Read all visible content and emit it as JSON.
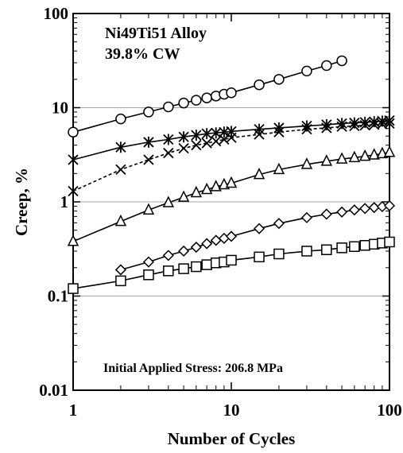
{
  "chart_data": {
    "type": "line",
    "title_lines": [
      "Ni49Ti51 Alloy",
      "39.8% CW"
    ],
    "annotation": "Initial Applied Stress: 206.8 MPa",
    "xlabel": "Number of Cycles",
    "ylabel": "Creep, %",
    "xscale": "log",
    "yscale": "log",
    "xlim": [
      1,
      100
    ],
    "ylim": [
      0.01,
      100
    ],
    "xticks": [
      "1",
      "10",
      "100"
    ],
    "yticks": [
      "0.01",
      "0.1",
      "1",
      "10",
      "100"
    ],
    "grid": "horizontal",
    "legend": "none",
    "series": [
      {
        "marker": "circle",
        "x": [
          1,
          2,
          3,
          4,
          5,
          6,
          7,
          8,
          9,
          10,
          15,
          20,
          30,
          40,
          50
        ],
        "y": [
          5.5,
          7.6,
          9.0,
          10.2,
          11.2,
          12.0,
          12.7,
          13.3,
          13.9,
          14.4,
          17.5,
          20.0,
          24.5,
          28.0,
          31.5
        ]
      },
      {
        "marker": "asterisk",
        "x": [
          1,
          2,
          3,
          4,
          5,
          6,
          7,
          8,
          9,
          10,
          15,
          20,
          30,
          40,
          50,
          60,
          70,
          80,
          90,
          100
        ],
        "y": [
          2.8,
          3.8,
          4.3,
          4.6,
          4.9,
          5.1,
          5.3,
          5.4,
          5.5,
          5.6,
          5.9,
          6.1,
          6.4,
          6.6,
          6.8,
          6.9,
          7.0,
          7.1,
          7.2,
          7.3
        ]
      },
      {
        "marker": "x",
        "dashed": true,
        "x": [
          1,
          2,
          3,
          4,
          5,
          6,
          7,
          8,
          9,
          10,
          15,
          20,
          30,
          40,
          50,
          60,
          70,
          80,
          90,
          100
        ],
        "y": [
          1.3,
          2.2,
          2.8,
          3.3,
          3.7,
          4.0,
          4.2,
          4.4,
          4.6,
          4.8,
          5.2,
          5.5,
          5.9,
          6.1,
          6.3,
          6.4,
          6.5,
          6.6,
          6.7,
          6.8
        ]
      },
      {
        "marker": "triangle",
        "x": [
          1,
          2,
          3,
          4,
          5,
          6,
          7,
          8,
          9,
          10,
          15,
          20,
          30,
          40,
          50,
          60,
          70,
          80,
          90,
          100
        ],
        "y": [
          0.38,
          0.62,
          0.82,
          0.98,
          1.12,
          1.25,
          1.35,
          1.45,
          1.52,
          1.58,
          1.95,
          2.2,
          2.5,
          2.7,
          2.85,
          2.95,
          3.05,
          3.15,
          3.25,
          3.35
        ]
      },
      {
        "marker": "diamond",
        "x": [
          2,
          3,
          4,
          5,
          6,
          7,
          8,
          9,
          10,
          15,
          20,
          30,
          40,
          50,
          60,
          70,
          80,
          90,
          100
        ],
        "y": [
          0.19,
          0.23,
          0.27,
          0.3,
          0.33,
          0.36,
          0.39,
          0.41,
          0.43,
          0.52,
          0.59,
          0.68,
          0.74,
          0.78,
          0.82,
          0.85,
          0.87,
          0.89,
          0.91
        ]
      },
      {
        "marker": "square",
        "x": [
          1,
          2,
          3,
          4,
          5,
          6,
          7,
          8,
          9,
          10,
          15,
          20,
          30,
          40,
          50,
          60,
          70,
          80,
          90,
          100
        ],
        "y": [
          0.12,
          0.145,
          0.168,
          0.185,
          0.195,
          0.205,
          0.215,
          0.225,
          0.23,
          0.24,
          0.26,
          0.28,
          0.3,
          0.31,
          0.325,
          0.335,
          0.345,
          0.355,
          0.365,
          0.375
        ]
      }
    ]
  }
}
